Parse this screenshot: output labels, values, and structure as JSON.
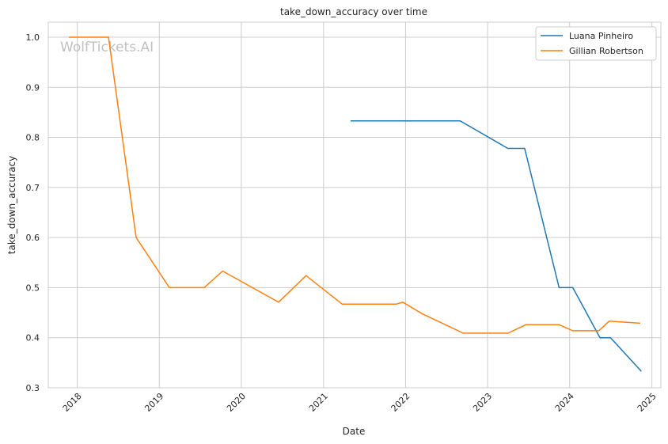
{
  "watermark": "WolfTickets.AI",
  "chart_data": {
    "type": "line",
    "title": "take_down_accuracy over time",
    "xlabel": "Date",
    "ylabel": "take_down_accuracy",
    "xlim": [
      "2017-08-25",
      "2025-02-10"
    ],
    "ylim": [
      0.3,
      1.03
    ],
    "x_ticks": [
      "2018",
      "2019",
      "2020",
      "2021",
      "2022",
      "2023",
      "2024",
      "2025"
    ],
    "y_ticks": [
      "0.3",
      "0.4",
      "0.5",
      "0.6",
      "0.7",
      "0.8",
      "0.9",
      "1.0"
    ],
    "grid": true,
    "legend_position": "top-right",
    "series": [
      {
        "name": "Luana Pinheiro",
        "color": "#1f77b4",
        "points": [
          [
            "2021-05-01",
            0.833
          ],
          [
            "2022-09-01",
            0.833
          ],
          [
            "2023-04-01",
            0.778
          ],
          [
            "2023-06-15",
            0.778
          ],
          [
            "2023-11-15",
            0.5
          ],
          [
            "2024-01-15",
            0.5
          ],
          [
            "2024-05-15",
            0.4
          ],
          [
            "2024-07-01",
            0.4
          ],
          [
            "2024-11-15",
            0.333
          ]
        ]
      },
      {
        "name": "Gillian Robertson",
        "color": "#ff7f0e",
        "points": [
          [
            "2017-11-25",
            1.0
          ],
          [
            "2018-05-20",
            1.0
          ],
          [
            "2018-09-20",
            0.6
          ],
          [
            "2019-02-15",
            0.5
          ],
          [
            "2019-07-20",
            0.5
          ],
          [
            "2019-10-10",
            0.533
          ],
          [
            "2020-06-15",
            0.471
          ],
          [
            "2020-10-15",
            0.524
          ],
          [
            "2021-03-25",
            0.467
          ],
          [
            "2021-11-20",
            0.467
          ],
          [
            "2021-12-20",
            0.471
          ],
          [
            "2022-03-15",
            0.448
          ],
          [
            "2022-09-15",
            0.409
          ],
          [
            "2023-04-01",
            0.409
          ],
          [
            "2023-06-20",
            0.426
          ],
          [
            "2023-11-15",
            0.426
          ],
          [
            "2024-01-15",
            0.414
          ],
          [
            "2024-05-10",
            0.414
          ],
          [
            "2024-06-25",
            0.433
          ],
          [
            "2024-11-10",
            0.429
          ]
        ]
      }
    ]
  }
}
